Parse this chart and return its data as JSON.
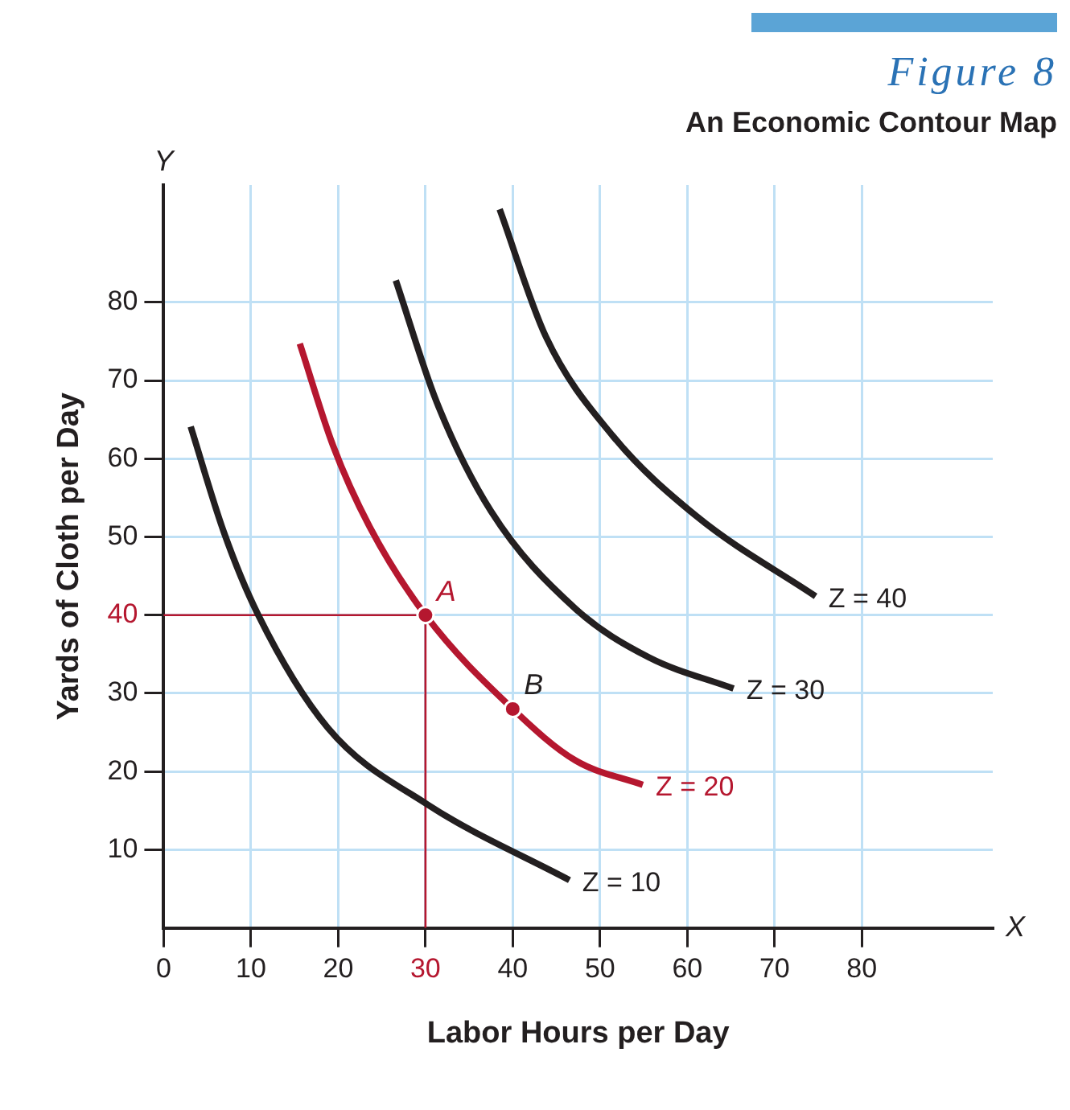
{
  "chart_data": {
    "type": "line",
    "title": "Figure 8",
    "subtitle": "An Economic Contour Map",
    "xlabel": "Labor Hours per Day",
    "ylabel": "Yards of Cloth per Day",
    "xlim": [
      0,
      95
    ],
    "ylim": [
      0,
      95
    ],
    "xticks": [
      0,
      10,
      20,
      30,
      40,
      50,
      60,
      70,
      80
    ],
    "yticks": [
      10,
      20,
      30,
      40,
      50,
      60,
      70,
      80
    ],
    "grid": true,
    "legend": false,
    "marker": "none",
    "line_style": "solid",
    "series": [
      {
        "name": "Z = 10",
        "color": "#231f20",
        "x": [
          3.1,
          6.9,
          10.8,
          18.8,
          30.2,
          46.5
        ],
        "values": [
          64.1,
          50.6,
          40.1,
          25.6,
          15.8,
          6.1
        ]
      },
      {
        "name": "Z = 20",
        "color": "#b5172f",
        "x": [
          15.6,
          19.4,
          23.6,
          30,
          40,
          47.2,
          54.9
        ],
        "values": [
          74.7,
          61.7,
          51.3,
          40,
          28,
          21.4,
          18.3
        ]
      },
      {
        "name": "Z = 30",
        "color": "#231f20",
        "x": [
          26.6,
          31.3,
          37.5,
          47.2,
          55.6,
          65.3
        ],
        "values": [
          82.8,
          67.2,
          53.3,
          40.8,
          34.6,
          30.6
        ]
      },
      {
        "name": "Z = 40",
        "color": "#231f20",
        "x": [
          38.5,
          43.8,
          51.4,
          61.1,
          74.7
        ],
        "values": [
          91.9,
          75.6,
          63,
          52.6,
          42.4
        ]
      },
      {
        "type": "scatter",
        "marker": "circle",
        "color": "#b5172f",
        "x": [
          30,
          40
        ],
        "values": [
          40,
          28
        ]
      }
    ],
    "ref_lines": [
      {
        "axis": "x",
        "value": 30,
        "color": "#b5172f"
      },
      {
        "axis": "y",
        "value": 40,
        "color": "#b5172f"
      }
    ],
    "annotations": [
      {
        "text": "A",
        "x": 30,
        "y": 40
      },
      {
        "text": "B",
        "x": 40,
        "y": 28
      },
      "X",
      "Y"
    ]
  }
}
